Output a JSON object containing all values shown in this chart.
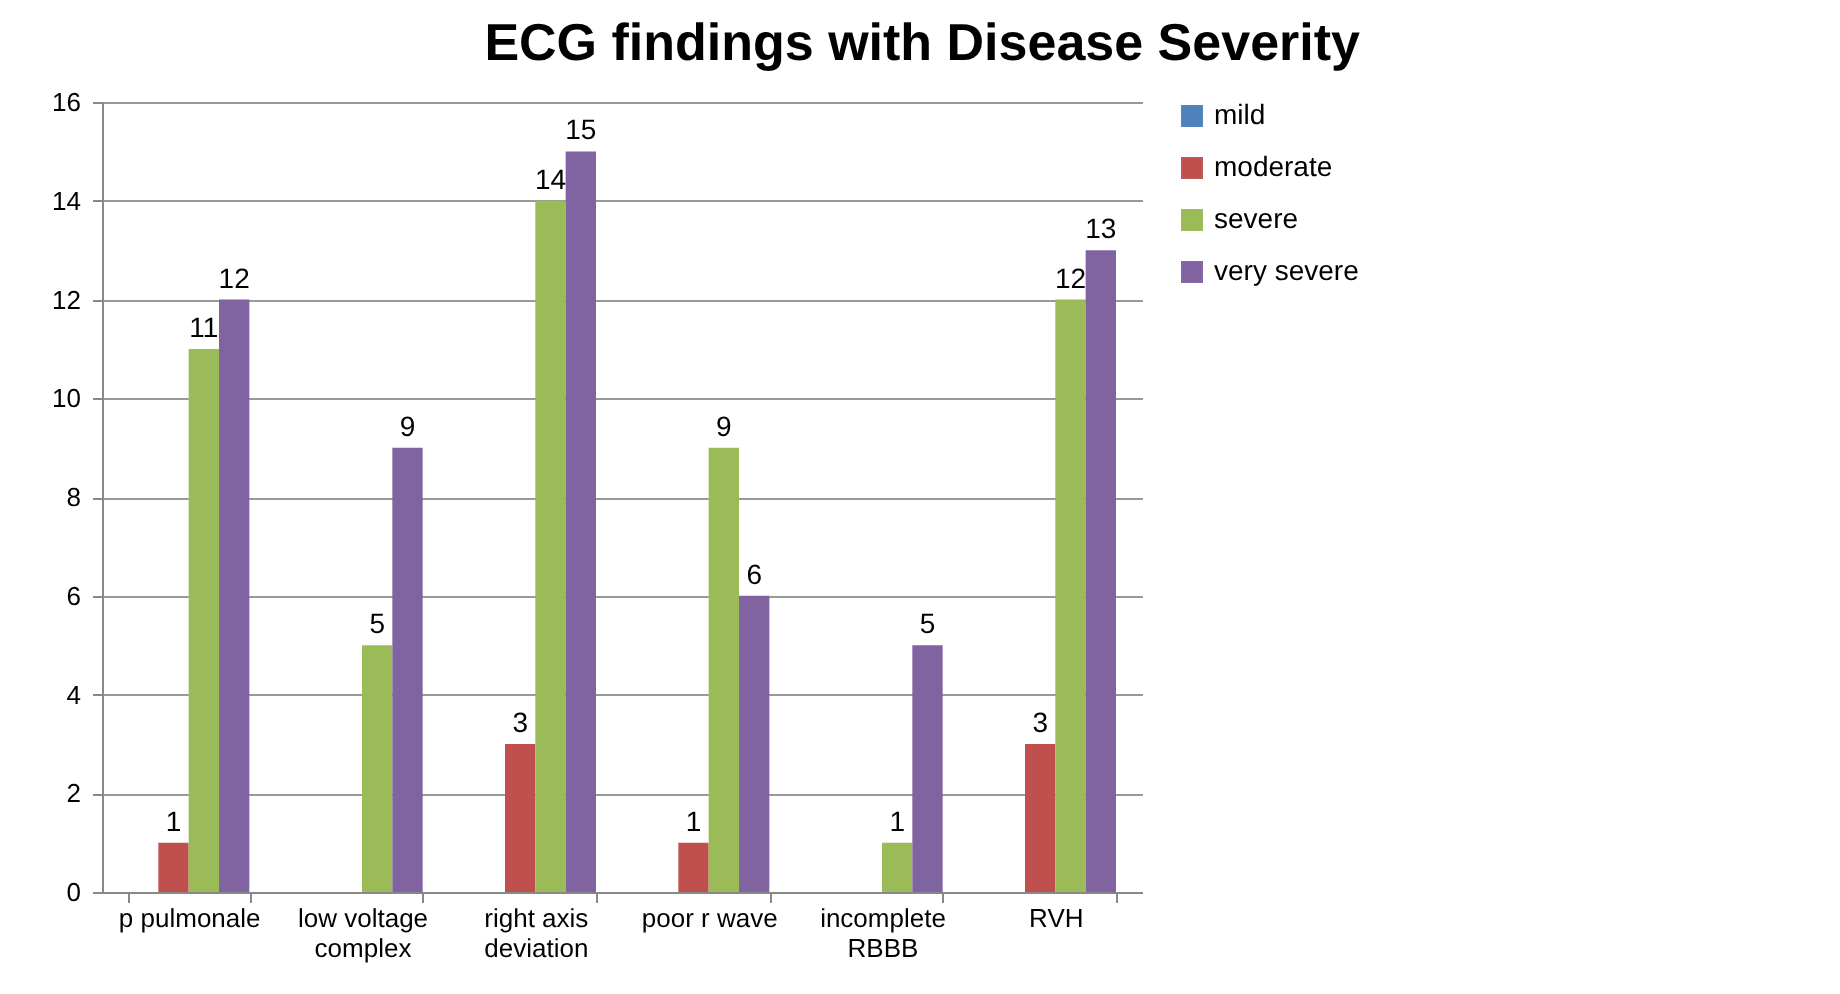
{
  "chart_data": {
    "type": "bar",
    "title": "ECG findings with Disease Severity",
    "categories": [
      "p pulmonale",
      "low voltage complex",
      "right axis deviation",
      "poor r wave",
      "incomplete RBBB",
      "RVH"
    ],
    "series": [
      {
        "name": "mild",
        "color": "#4f81bd",
        "values": [
          null,
          null,
          null,
          null,
          null,
          null
        ]
      },
      {
        "name": "moderate",
        "color": "#c0504d",
        "values": [
          1,
          null,
          3,
          1,
          null,
          3
        ]
      },
      {
        "name": "severe",
        "color": "#9bbb59",
        "values": [
          11,
          5,
          14,
          9,
          1,
          12
        ]
      },
      {
        "name": "very severe",
        "color": "#8064a2",
        "values": [
          12,
          9,
          15,
          6,
          5,
          13
        ]
      }
    ],
    "data_labels": true,
    "ylim": [
      0,
      16
    ],
    "yticks": [
      0,
      2,
      4,
      6,
      8,
      10,
      12,
      14,
      16
    ],
    "grid": "y",
    "legend": "right"
  }
}
